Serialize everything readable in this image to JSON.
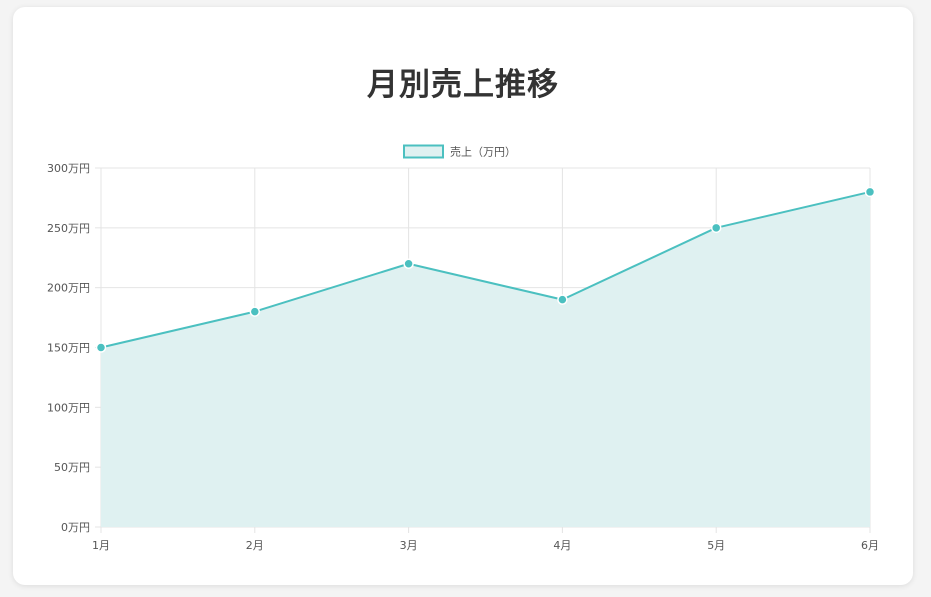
{
  "chart_data": {
    "type": "area",
    "title": "月別売上推移",
    "categories": [
      "1月",
      "2月",
      "3月",
      "4月",
      "5月",
      "6月"
    ],
    "series": [
      {
        "name": "売上（万円）",
        "values": [
          150,
          180,
          220,
          190,
          250,
          280
        ]
      }
    ],
    "ylim": [
      0,
      300
    ],
    "y_ticks": [
      0,
      50,
      100,
      150,
      200,
      250,
      300
    ],
    "y_tick_suffix": "万円",
    "grid": true,
    "legend_position": "top",
    "colors": {
      "line": "#4bc0c0",
      "fill": "#dff1f1",
      "grid": "#e4e4e4",
      "point_border": "#ffffff"
    }
  }
}
